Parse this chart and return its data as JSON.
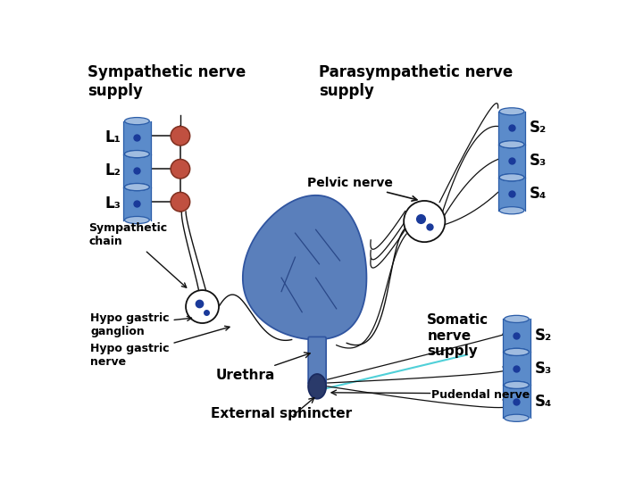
{
  "bg_color": "#ffffff",
  "sympathetic_label": "Sympathetic nerve\nsupply",
  "parasympathetic_label": "Parasympathetic nerve\nsupply",
  "somatic_label": "Somatic\nnerve\nsupply",
  "pelvic_nerve_label": "Pelvic nerve",
  "sympathetic_chain_label": "Sympathetic\nchain",
  "hypo_gastric_ganglion_label": "Hypo gastric\nganglion",
  "hypo_gastric_nerve_label": "Hypo gastric\nnerve",
  "urethra_label": "Urethra",
  "external_sphincter_label": "External sphincter",
  "pudendal_nerve_label": "Pudendal nerve",
  "L_labels": [
    "L₁",
    "L₂",
    "L₃"
  ],
  "S_para_labels": [
    "S₂",
    "S₃",
    "S₄"
  ],
  "S_somatic_labels": [
    "S₂",
    "S₃",
    "S₄"
  ],
  "spine_blue": "#5b8bca",
  "spine_dark_blue": "#2a5ca8",
  "spine_light": "#a0bce0",
  "ganglion_red": "#c05040",
  "bladder_blue": "#5a7fbb",
  "bladder_dark": "#2a4880",
  "urethra_dark": "#2a3a6a",
  "nerve_color": "#111111",
  "cyan_nerve": "#50d0d8",
  "circle_outline": "#111111"
}
